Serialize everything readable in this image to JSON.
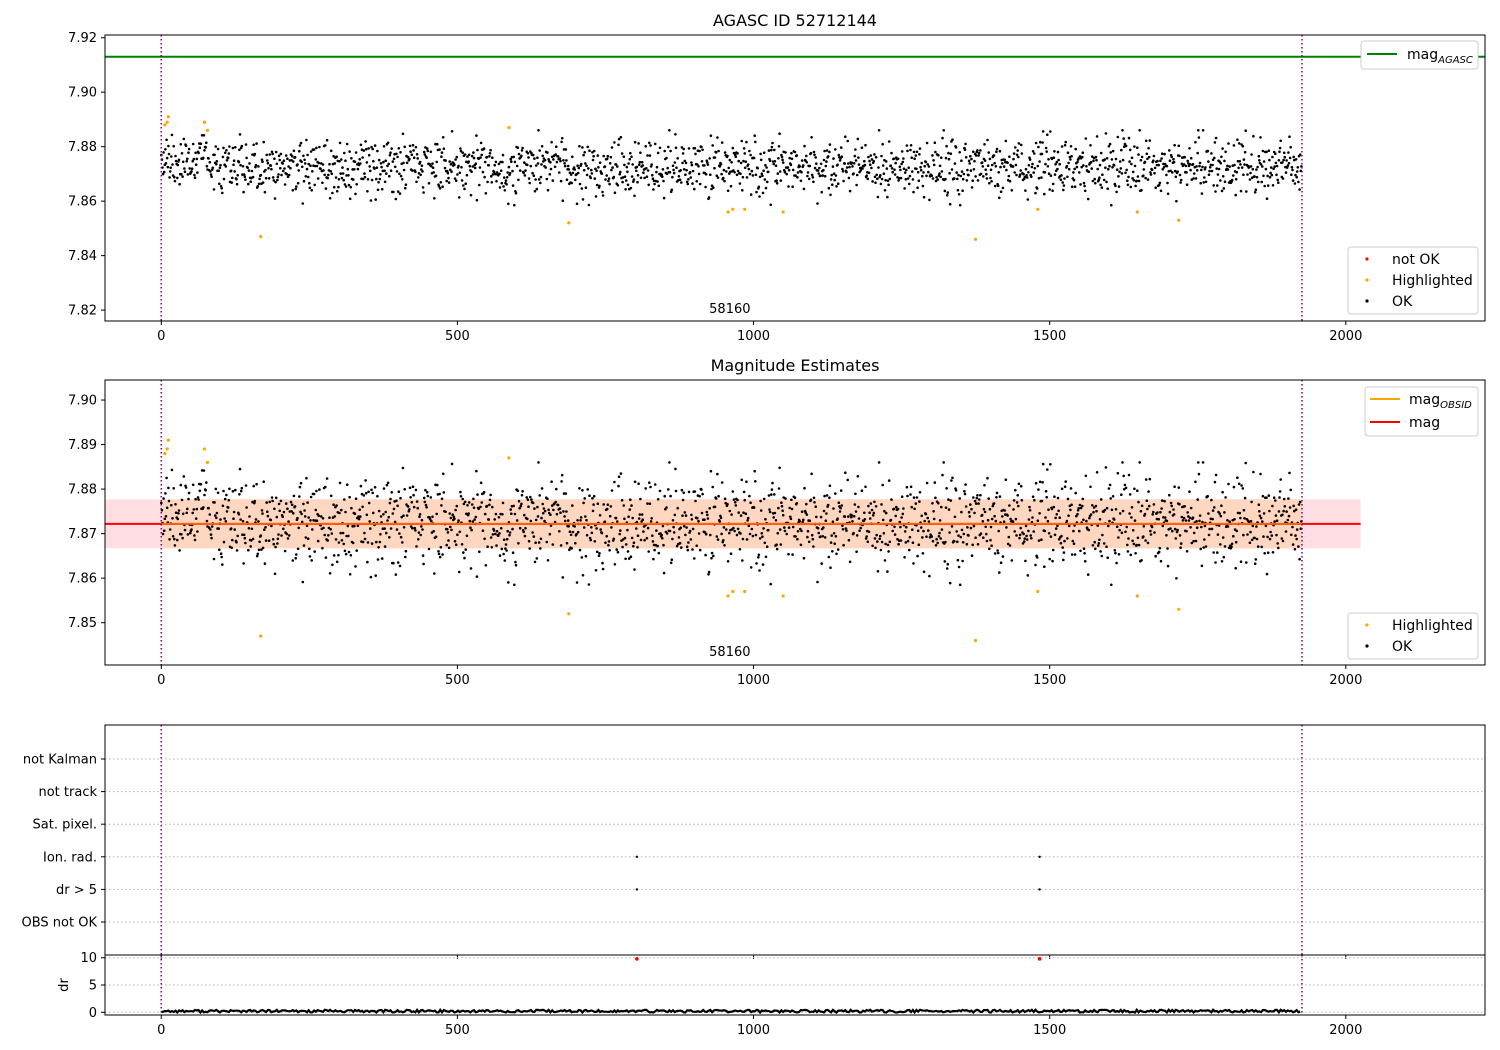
{
  "chart_data": [
    {
      "type": "scatter",
      "title": "AGASC ID 52712144",
      "xlim": [
        -95,
        2235
      ],
      "ylim": [
        7.816,
        7.921
      ],
      "xticks": [
        0,
        500,
        1000,
        1500,
        2000
      ],
      "yticks": [
        7.82,
        7.84,
        7.86,
        7.88,
        7.9,
        7.92
      ],
      "ytick_labels": [
        "7.82",
        "7.84",
        "7.86",
        "7.88",
        "7.90",
        "7.92"
      ],
      "vlines": [
        0,
        1926
      ],
      "hline": {
        "name_base": "mag",
        "name_sub": "AGASC",
        "value": 7.913,
        "color": "#008000"
      },
      "annotation": {
        "text": "58160",
        "x": 960,
        "y": 7.819
      },
      "ok_base": 7.8725,
      "ok_spread": 0.0052,
      "n_ok": 1926,
      "highlighted": [
        [
          6,
          7.888
        ],
        [
          10,
          7.889
        ],
        [
          12,
          7.891
        ],
        [
          73,
          7.889
        ],
        [
          78,
          7.886
        ],
        [
          168,
          7.847
        ],
        [
          587,
          7.887
        ],
        [
          688,
          7.852
        ],
        [
          957,
          7.856
        ],
        [
          965,
          7.857
        ],
        [
          985,
          7.857
        ],
        [
          1050,
          7.856
        ],
        [
          1375,
          7.846
        ],
        [
          1480,
          7.857
        ],
        [
          1648,
          7.856
        ],
        [
          1718,
          7.853
        ]
      ],
      "legend_top": [
        {
          "label_base": "mag",
          "label_sub": "AGASC",
          "color": "#008000"
        }
      ],
      "legend_bottom": [
        {
          "label": "not OK",
          "color": "#ff0000"
        },
        {
          "label": "Highlighted",
          "color": "#ffa500"
        },
        {
          "label": "OK",
          "color": "#000000"
        }
      ]
    },
    {
      "type": "scatter",
      "title": "Magnitude Estimates",
      "xlim": [
        -95,
        2235
      ],
      "ylim": [
        7.8405,
        7.9045
      ],
      "xticks": [
        0,
        500,
        1000,
        1500,
        2000
      ],
      "yticks": [
        7.85,
        7.86,
        7.87,
        7.88,
        7.89,
        7.9
      ],
      "ytick_labels": [
        "7.85",
        "7.86",
        "7.87",
        "7.88",
        "7.89",
        "7.90"
      ],
      "vlines": [
        0,
        1926
      ],
      "mag_line": {
        "value": 7.8722,
        "x_start": -95,
        "x_end": 2025,
        "color": "#ff0000"
      },
      "band_pink": {
        "low": 7.8667,
        "high": 7.8777,
        "x_start": -95,
        "x_end": 2025
      },
      "band_orange": {
        "low": 7.8667,
        "high": 7.8777,
        "x_start": 0,
        "x_end": 1926
      },
      "annotation": {
        "text": "58160",
        "x": 960,
        "y": 7.8425
      },
      "legend_top": [
        {
          "label_base": "mag",
          "label_sub": "OBSID",
          "color": "#ffa500"
        },
        {
          "label_base": "mag",
          "label_sub": "",
          "color": "#ff0000"
        }
      ],
      "legend_bottom": [
        {
          "label": "Highlighted",
          "color": "#ffa500"
        },
        {
          "label": "OK",
          "color": "#000000"
        }
      ]
    },
    {
      "type": "scatter",
      "title": "",
      "xlim": [
        -95,
        2235
      ],
      "xticks": [
        0,
        500,
        1000,
        1500,
        2000
      ],
      "vlines": [
        0,
        1926
      ],
      "flag_labels": [
        "not Kalman",
        "not track",
        "Sat. pixel.",
        "Ion. rad.",
        "dr > 5",
        "OBS not OK"
      ],
      "flag_points": [
        {
          "flag": "Ion. rad.",
          "x": [
            803,
            1483
          ]
        },
        {
          "flag": "dr > 5",
          "x": [
            803,
            1483
          ]
        }
      ]
    },
    {
      "type": "scatter",
      "title": "",
      "ylabel": "dr",
      "xlim": [
        -95,
        2235
      ],
      "ylim": [
        -0.5,
        10.5
      ],
      "xticks": [
        0,
        500,
        1000,
        1500,
        2000
      ],
      "xtick_labels": [
        "0",
        "500",
        "1000",
        "1500",
        "2000"
      ],
      "yticks": [
        0,
        5,
        10
      ],
      "ytick_labels": [
        "0",
        "5",
        "10"
      ],
      "vlines": [
        0,
        1926
      ],
      "outliers": [
        [
          803,
          9.8
        ],
        [
          1483,
          9.8
        ]
      ],
      "dr_base": 0.2
    }
  ]
}
